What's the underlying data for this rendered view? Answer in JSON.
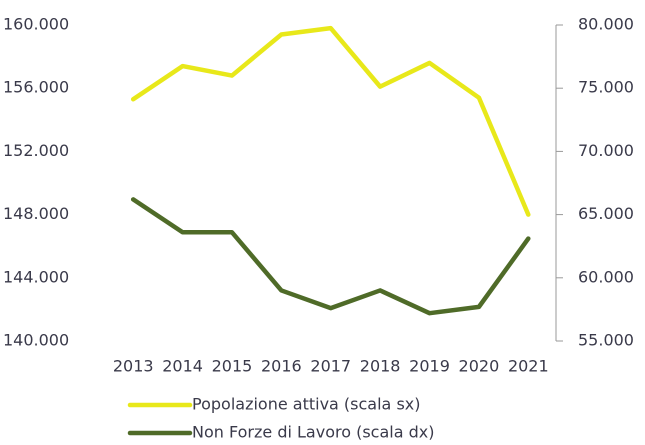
{
  "chart_data": {
    "type": "line",
    "categories": [
      "2013",
      "2014",
      "2015",
      "2016",
      "2017",
      "2018",
      "2019",
      "2020",
      "2021"
    ],
    "series": [
      {
        "name": "Popolazione attiva (scala sx)",
        "color": "#e8e81a",
        "values": [
          155300,
          157400,
          156800,
          159400,
          159800,
          156100,
          157600,
          155400,
          148000
        ]
      },
      {
        "name": "Non Forze di Lavoro (scala dx)",
        "color": "#4f6b28",
        "axis": "y2",
        "values": [
          66200,
          63600,
          63600,
          59000,
          57600,
          59000,
          57200,
          57700,
          63100
        ]
      }
    ],
    "ylim": [
      140000,
      160000
    ],
    "yticks": [
      {
        "value": 140000,
        "label": "140.000"
      },
      {
        "value": 144000,
        "label": "144.000"
      },
      {
        "value": 148000,
        "label": "148.000"
      },
      {
        "value": 152000,
        "label": "152.000"
      },
      {
        "value": 156000,
        "label": "156.000"
      },
      {
        "value": 160000,
        "label": "160.000"
      }
    ],
    "y2lim": [
      55000,
      80000
    ],
    "y2ticks": [
      {
        "value": 55000,
        "label": "55.000"
      },
      {
        "value": 60000,
        "label": "60.000"
      },
      {
        "value": 65000,
        "label": "65.000"
      },
      {
        "value": 70000,
        "label": "70.000"
      },
      {
        "value": 75000,
        "label": "75.000"
      },
      {
        "value": 80000,
        "label": "80.000"
      }
    ],
    "grid": false,
    "legend": "bottom"
  }
}
